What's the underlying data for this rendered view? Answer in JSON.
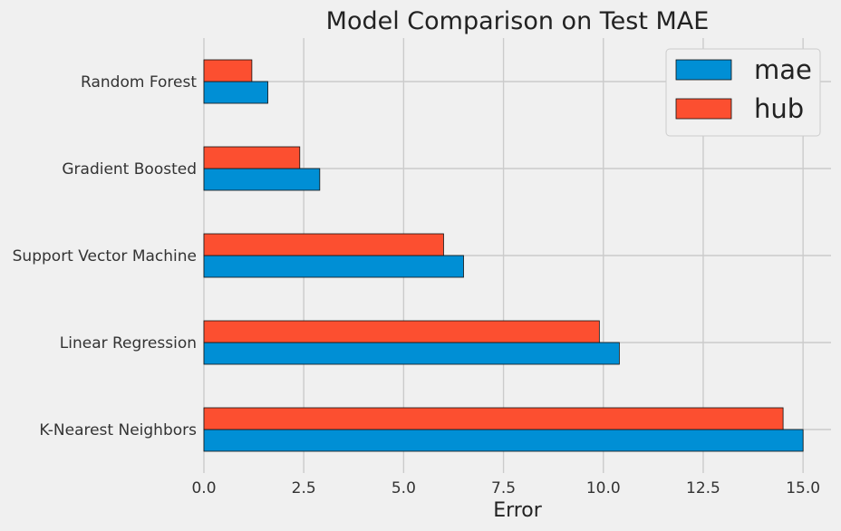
{
  "chart_data": {
    "type": "bar",
    "orientation": "horizontal",
    "title": "Model Comparison on Test MAE",
    "xlabel": "Error",
    "ylabel": "",
    "categories": [
      "Random Forest",
      "Gradient Boosted",
      "Support Vector Machine",
      "Linear Regression",
      "K-Nearest Neighbors"
    ],
    "series": [
      {
        "name": "mae",
        "color": "#008fd5",
        "values": [
          1.6,
          2.9,
          6.5,
          10.4,
          15.0
        ]
      },
      {
        "name": "hub",
        "color": "#fc4f30",
        "values": [
          1.2,
          2.4,
          6.0,
          9.9,
          14.5
        ]
      }
    ],
    "xlim": [
      0,
      15.7
    ],
    "xticks": [
      0.0,
      2.5,
      5.0,
      7.5,
      10.0,
      12.5,
      15.0
    ],
    "xtick_labels": [
      "0.0",
      "2.5",
      "5.0",
      "7.5",
      "10.0",
      "12.5",
      "15.0"
    ],
    "grid": true,
    "legend_position": "top-right",
    "background": "#f0f0f0",
    "grid_color": "#cbcbcb"
  }
}
